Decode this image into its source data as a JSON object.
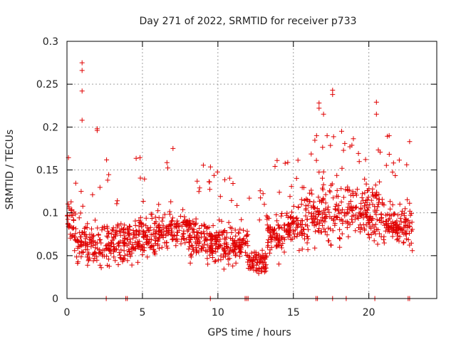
{
  "chart_data": {
    "type": "scatter",
    "title": "Day 271 of 2022, SRMTID for receiver p733",
    "xlabel": "GPS time / hours",
    "ylabel": "SRMTID / TECUs",
    "xlim": [
      0,
      24.5
    ],
    "ylim": [
      0,
      0.3
    ],
    "x_ticks": [
      0,
      5,
      10,
      15,
      20
    ],
    "x_tick_labels": [
      "0",
      "5",
      "10",
      "15",
      "20"
    ],
    "y_ticks": [
      0,
      0.05,
      0.1,
      0.15,
      0.2,
      0.25,
      0.3
    ],
    "y_tick_labels": [
      "0",
      "0.05",
      "0.1",
      "0.15",
      "0.2",
      "0.25",
      "0.3"
    ],
    "grid": true,
    "marker": "plus",
    "color": "#e00000",
    "series": [
      {
        "name": "SRMTID",
        "description": "dense per-epoch scatter; mean level ~0.07 TECU 0-13h, dip ~0.04 at 12-13h, rises to ~0.1 after 14h",
        "peaks": [
          {
            "x": 1.0,
            "y": 0.275
          },
          {
            "x": 1.0,
            "y": 0.266
          },
          {
            "x": 1.0,
            "y": 0.242
          },
          {
            "x": 1.0,
            "y": 0.208
          },
          {
            "x": 2.0,
            "y": 0.198
          },
          {
            "x": 2.0,
            "y": 0.196
          },
          {
            "x": 17.6,
            "y": 0.243
          },
          {
            "x": 17.6,
            "y": 0.238
          },
          {
            "x": 16.7,
            "y": 0.228
          },
          {
            "x": 16.7,
            "y": 0.222
          },
          {
            "x": 17.0,
            "y": 0.215
          },
          {
            "x": 20.5,
            "y": 0.229
          },
          {
            "x": 20.5,
            "y": 0.215
          },
          {
            "x": 18.2,
            "y": 0.195
          },
          {
            "x": 22.7,
            "y": 0.183
          }
        ],
        "zero_values_x": [
          2.6,
          3.9,
          4.0,
          9.5,
          11.8,
          11.9,
          12.0,
          16.5,
          16.6,
          17.6,
          18.5,
          20.4,
          22.6,
          22.7
        ]
      }
    ]
  }
}
